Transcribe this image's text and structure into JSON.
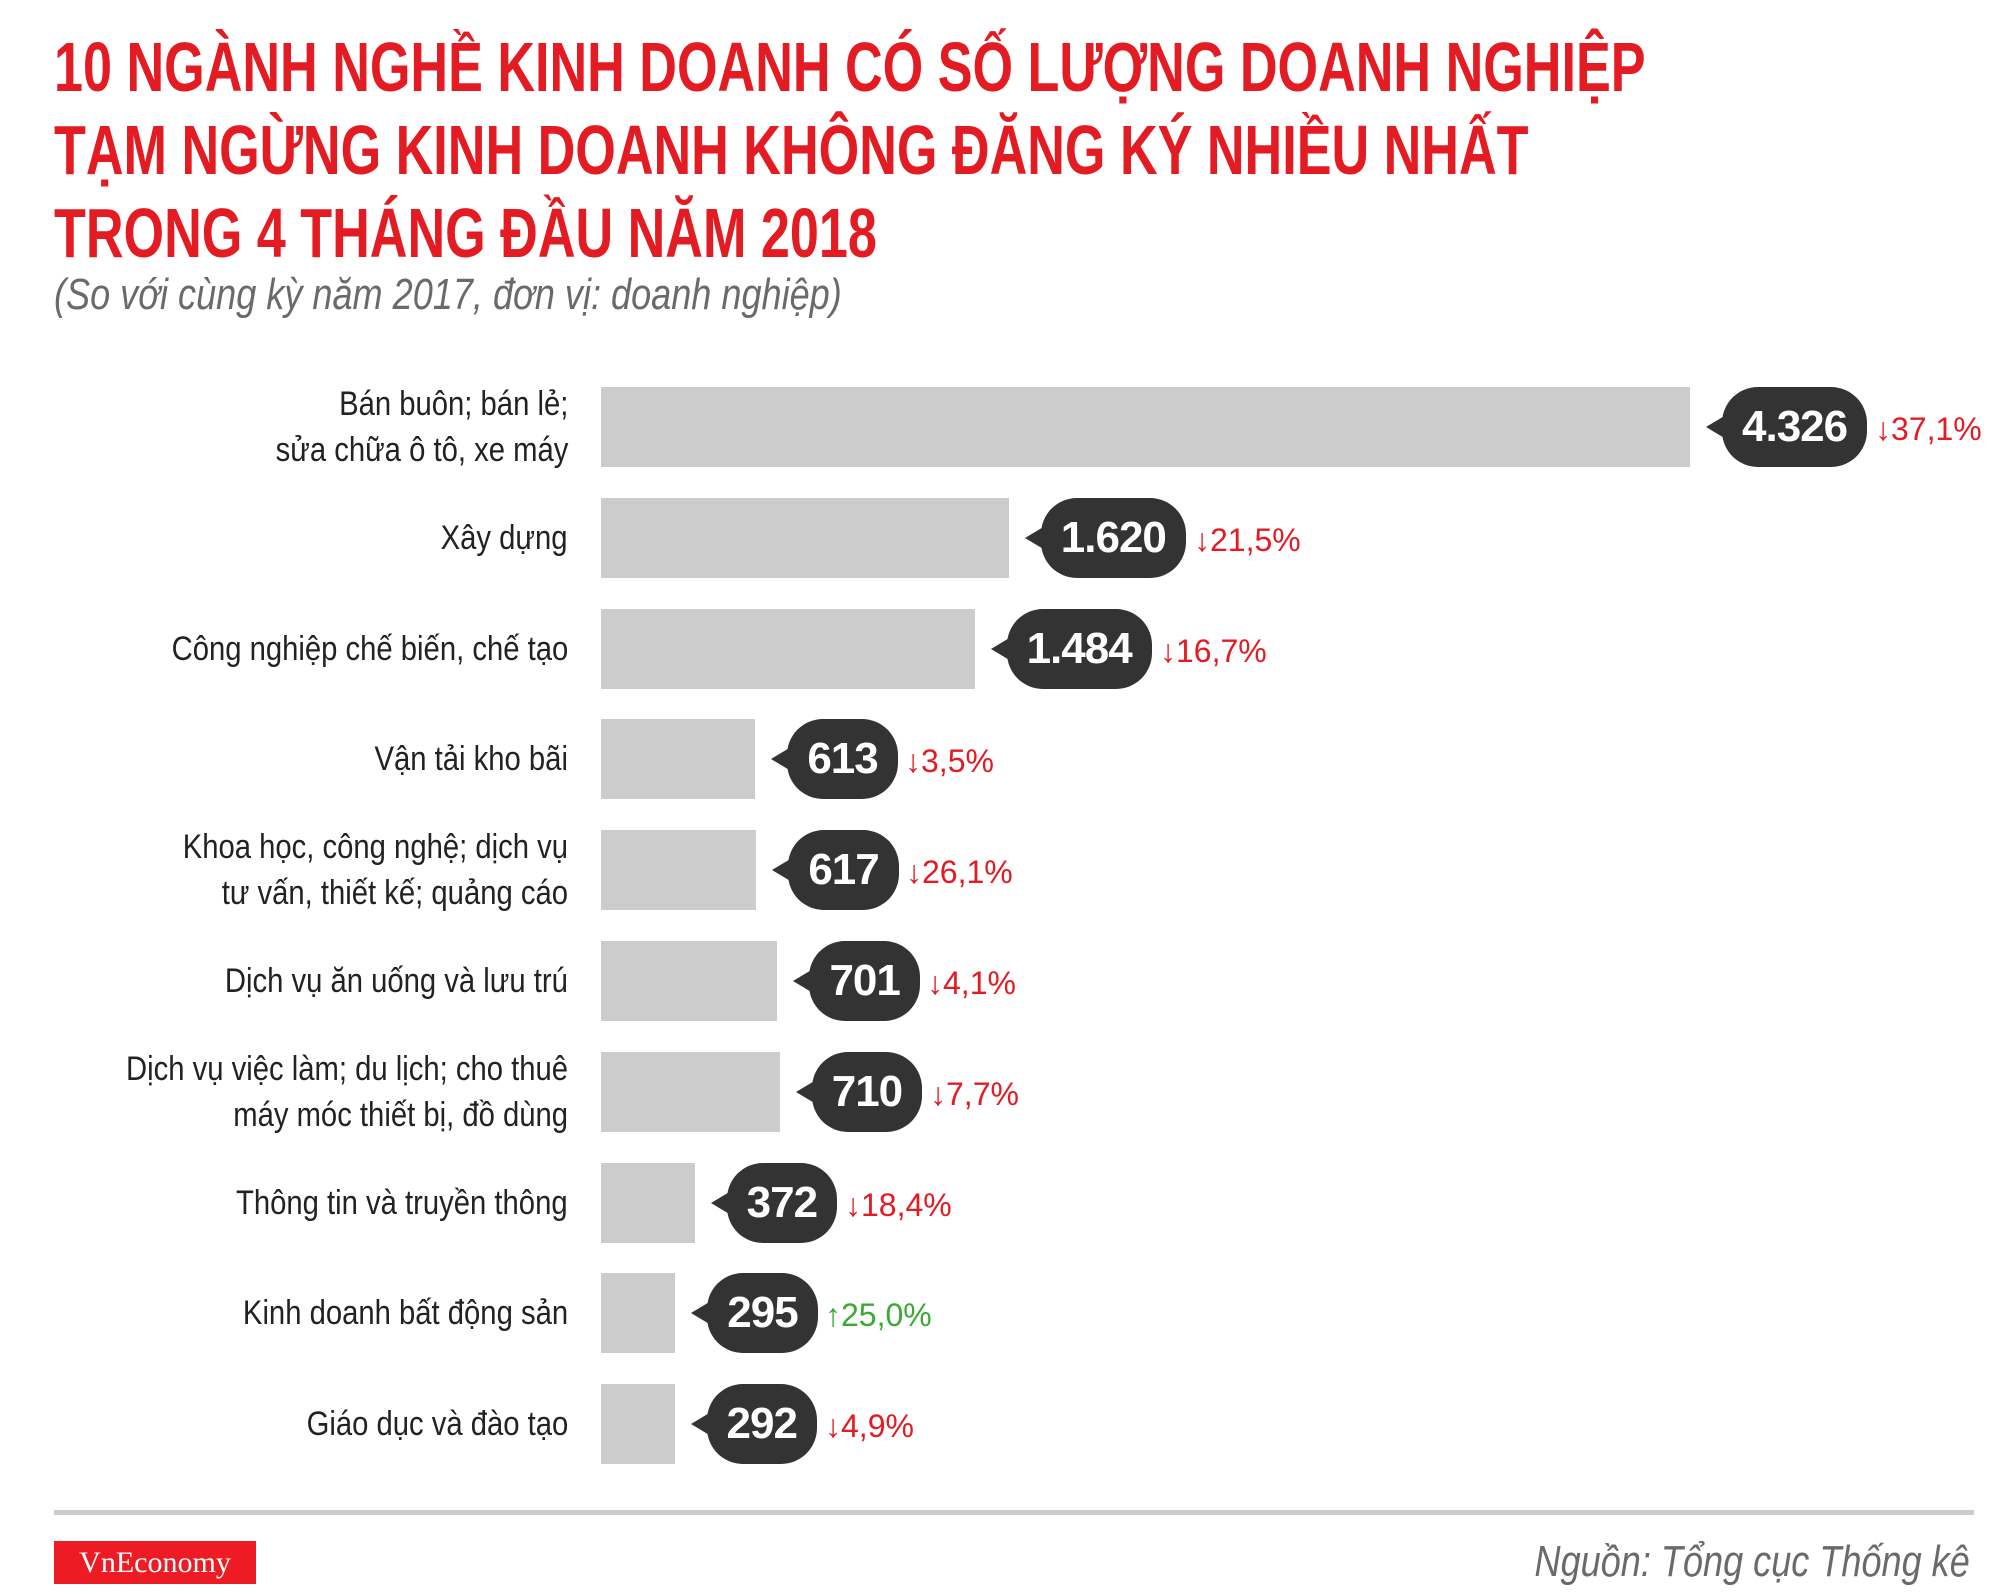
{
  "title_lines": [
    "10 NGÀNH NGHỀ KINH DOANH CÓ SỐ LƯỢNG DOANH NGHIỆP",
    "TẠM NGỪNG KINH DOANH KHÔNG ĐĂNG KÝ NHIỀU NHẤT",
    "TRONG 4 THÁNG ĐẦU NĂM 2018"
  ],
  "subtitle": "(So với cùng kỳ năm 2017, đơn vị: doanh nghiệp)",
  "colors": {
    "title": "#e31b23",
    "bar": "#cccccc",
    "bubble": "#333333",
    "down": "#e31b23",
    "up": "#3aaa35"
  },
  "chart_data": {
    "type": "bar",
    "orientation": "horizontal",
    "title": "10 NGÀNH NGHỀ KINH DOANH CÓ SỐ LƯỢNG DOANH NGHIỆP TẠM NGỪNG KINH DOANH KHÔNG ĐĂNG KÝ NHIỀU NHẤT TRONG 4 THÁNG ĐẦU NĂM 2018",
    "categories": [
      [
        "Bán buôn; bán lẻ;",
        "sửa chữa ô tô, xe máy"
      ],
      [
        "Xây dựng"
      ],
      [
        "Công nghiệp chế biến, chế tạo"
      ],
      [
        "Vận tải kho bãi"
      ],
      [
        "Khoa học, công nghệ; dịch vụ",
        "tư vấn, thiết kế; quảng cáo"
      ],
      [
        "Dịch vụ ăn uống và lưu trú"
      ],
      [
        "Dịch vụ việc làm; du lịch; cho thuê",
        "máy móc thiết bị, đồ dùng"
      ],
      [
        "Thông tin và truyền thông"
      ],
      [
        "Kinh doanh bất động sản"
      ],
      [
        "Giáo dục và đào tạo"
      ]
    ],
    "values": [
      4326,
      1620,
      1484,
      613,
      617,
      701,
      710,
      372,
      295,
      292
    ],
    "value_labels": [
      "4.326",
      "1.620",
      "1.484",
      "613",
      "617",
      "701",
      "710",
      "372",
      "295",
      "292"
    ],
    "changes": [
      {
        "direction": "down",
        "text": "37,1%"
      },
      {
        "direction": "down",
        "text": "21,5%"
      },
      {
        "direction": "down",
        "text": "16,7%"
      },
      {
        "direction": "down",
        "text": "3,5%"
      },
      {
        "direction": "down",
        "text": "26,1%"
      },
      {
        "direction": "down",
        "text": "4,1%"
      },
      {
        "direction": "down",
        "text": "7,7%"
      },
      {
        "direction": "down",
        "text": "18,4%"
      },
      {
        "direction": "up",
        "text": "25,0%"
      },
      {
        "direction": "down",
        "text": "4,9%"
      }
    ],
    "xlim": [
      0,
      4326
    ],
    "grid": false,
    "legend": "none"
  },
  "footer": {
    "logo": "VnEconomy",
    "source": "Nguồn: Tổng cục Thống kê"
  }
}
